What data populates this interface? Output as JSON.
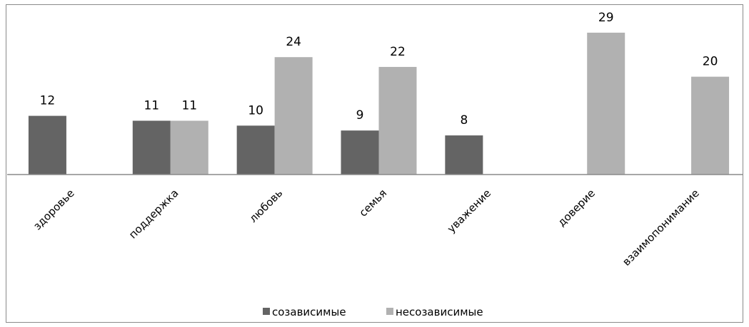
{
  "chart_data": {
    "type": "bar",
    "categories": [
      "здоровье",
      "поддержка",
      "любовь",
      "семья",
      "уважение",
      "доверие",
      "взаимопонимание"
    ],
    "series": [
      {
        "name": "созависимые",
        "values": [
          12,
          11,
          10,
          9,
          8,
          null,
          null
        ],
        "color": "#646464"
      },
      {
        "name": "несозависимые",
        "values": [
          null,
          11,
          24,
          22,
          null,
          29,
          20
        ],
        "color": "#b1b1b1"
      }
    ],
    "ylim": [
      0,
      30
    ],
    "grid": false,
    "legend_position": "bottom"
  }
}
